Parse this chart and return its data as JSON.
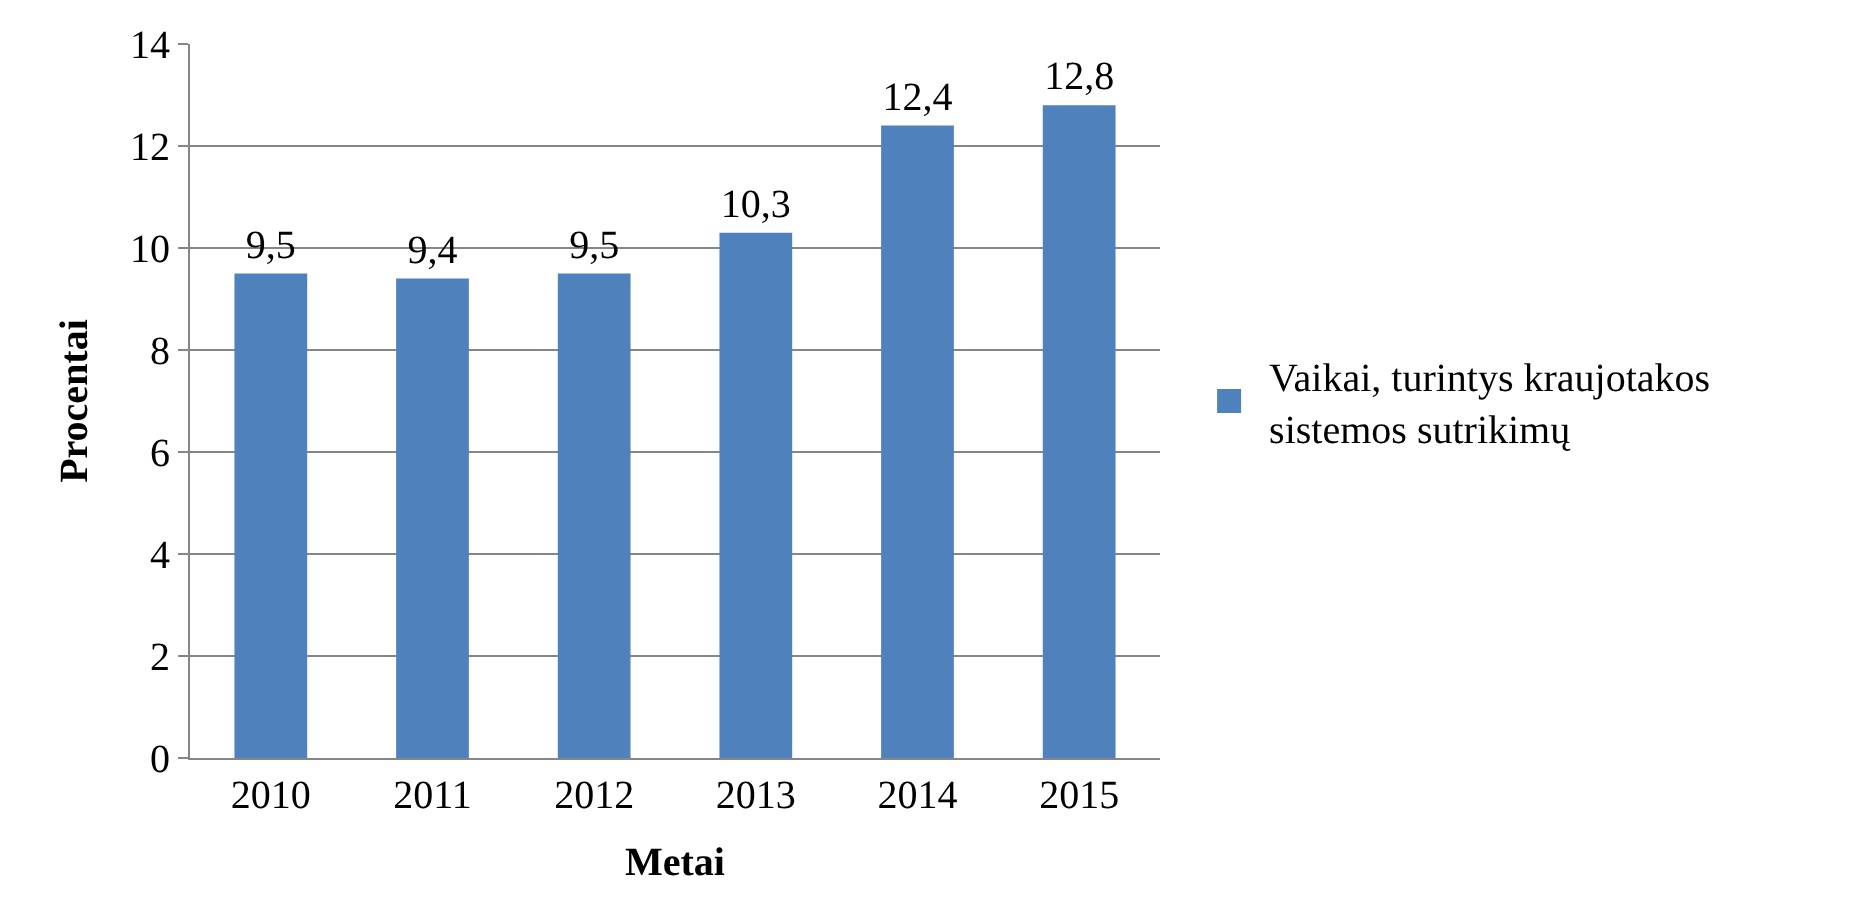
{
  "chart_data": {
    "type": "bar",
    "xlabel": "Metai",
    "ylabel": "Procentai",
    "categories": [
      "2010",
      "2011",
      "2012",
      "2013",
      "2014",
      "2015"
    ],
    "series": [
      {
        "name": "Vaikai, turintys kraujotakos sistemos sutrikimų",
        "color": "#4f81bd",
        "values": [
          9.5,
          9.4,
          9.5,
          10.3,
          12.4,
          12.8
        ],
        "value_labels": [
          "9,5",
          "9,4",
          "9,5",
          "10,3",
          "12,4",
          "12,8"
        ]
      }
    ],
    "ylim": [
      0,
      14
    ],
    "yticks": [
      0,
      2,
      4,
      6,
      8,
      10,
      12,
      14
    ],
    "grid": "y",
    "legend": "right"
  }
}
